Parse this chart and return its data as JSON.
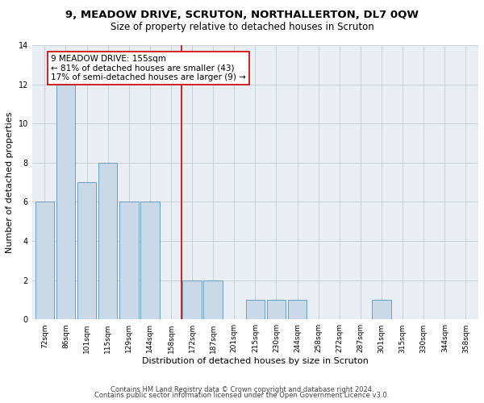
{
  "title": "9, MEADOW DRIVE, SCRUTON, NORTHALLERTON, DL7 0QW",
  "subtitle": "Size of property relative to detached houses in Scruton",
  "xlabel": "Distribution of detached houses by size in Scruton",
  "ylabel": "Number of detached properties",
  "categories": [
    "72sqm",
    "86sqm",
    "101sqm",
    "115sqm",
    "129sqm",
    "144sqm",
    "158sqm",
    "172sqm",
    "187sqm",
    "201sqm",
    "215sqm",
    "230sqm",
    "244sqm",
    "258sqm",
    "272sqm",
    "287sqm",
    "301sqm",
    "315sqm",
    "330sqm",
    "344sqm",
    "358sqm"
  ],
  "values": [
    6,
    12,
    7,
    8,
    6,
    6,
    0,
    2,
    2,
    0,
    1,
    1,
    1,
    0,
    0,
    0,
    1,
    0,
    0,
    0,
    0
  ],
  "bar_color": "#c9d9e8",
  "bar_edgecolor": "#6a9fc0",
  "bar_linewidth": 0.7,
  "redline_color": "#cc0000",
  "annotation_text": "9 MEADOW DRIVE: 155sqm\n← 81% of detached houses are smaller (43)\n17% of semi-detached houses are larger (9) →",
  "annotation_box_color": "#ffffff",
  "annotation_border_color": "#cc0000",
  "ylim": [
    0,
    14
  ],
  "yticks": [
    0,
    2,
    4,
    6,
    8,
    10,
    12,
    14
  ],
  "grid_color": "#c8d0d8",
  "background_color": "#e8eef4",
  "footer1": "Contains HM Land Registry data © Crown copyright and database right 2024.",
  "footer2": "Contains public sector information licensed under the Open Government Licence v3.0.",
  "title_fontsize": 9.5,
  "subtitle_fontsize": 8.5,
  "xlabel_fontsize": 8,
  "ylabel_fontsize": 8,
  "tick_fontsize": 6.5,
  "annotation_fontsize": 7.5,
  "footer_fontsize": 6
}
